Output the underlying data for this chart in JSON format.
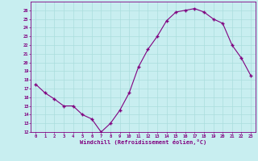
{
  "x": [
    0,
    1,
    2,
    3,
    4,
    5,
    6,
    7,
    8,
    9,
    10,
    11,
    12,
    13,
    14,
    15,
    16,
    17,
    18,
    19,
    20,
    21,
    22,
    23
  ],
  "y": [
    17.5,
    16.5,
    15.8,
    15.0,
    15.0,
    14.0,
    13.5,
    12.0,
    13.0,
    14.5,
    16.5,
    19.5,
    21.5,
    23.0,
    24.8,
    25.8,
    26.0,
    26.2,
    25.8,
    25.0,
    24.5,
    22.0,
    20.5,
    18.5
  ],
  "line_color": "#800080",
  "marker_color": "#800080",
  "bg_color": "#c8eef0",
  "grid_color": "#aadddd",
  "xlabel": "Windchill (Refroidissement éolien,°C)",
  "xlabel_color": "#800080",
  "tick_color": "#800080",
  "ylim": [
    12,
    27
  ],
  "xlim": [
    -0.5,
    23.5
  ],
  "yticks": [
    12,
    13,
    14,
    15,
    16,
    17,
    18,
    19,
    20,
    21,
    22,
    23,
    24,
    25,
    26
  ],
  "xticks": [
    0,
    1,
    2,
    3,
    4,
    5,
    6,
    7,
    8,
    9,
    10,
    11,
    12,
    13,
    14,
    15,
    16,
    17,
    18,
    19,
    20,
    21,
    22,
    23
  ]
}
